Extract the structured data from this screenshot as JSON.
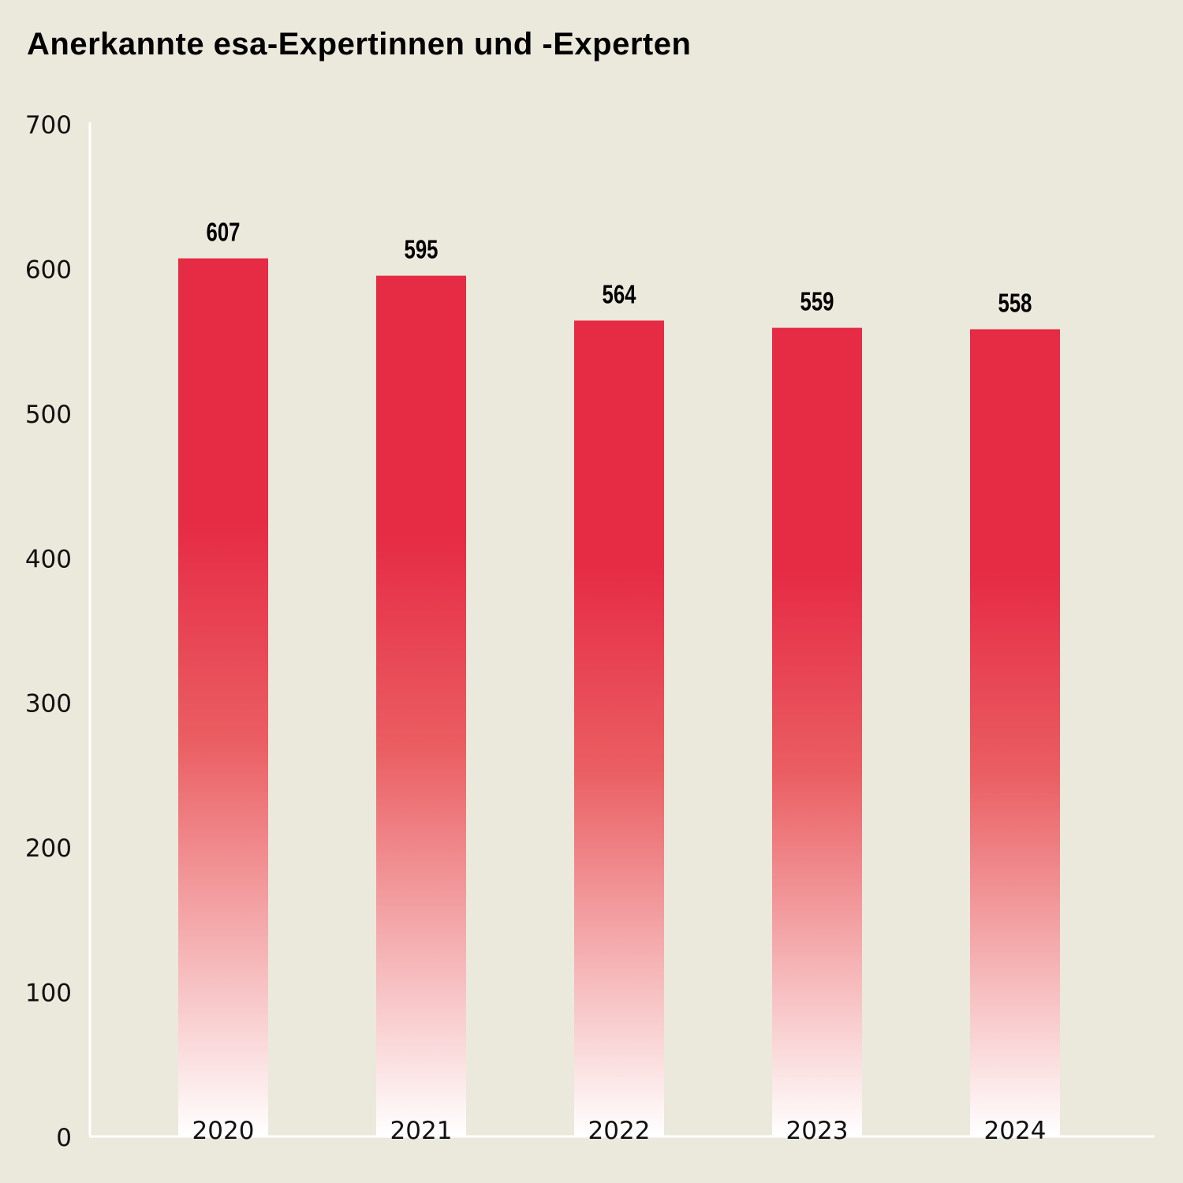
{
  "chart_data": {
    "type": "bar",
    "title": "Anerkannte esa-Expertinnen und -Experten",
    "categories": [
      "2020",
      "2021",
      "2022",
      "2023",
      "2024"
    ],
    "values": [
      607,
      595,
      564,
      559,
      558
    ],
    "ylim": [
      0,
      700
    ],
    "yticks": [
      0,
      100,
      200,
      300,
      400,
      500,
      600,
      700
    ],
    "xlabel": "",
    "ylabel": "",
    "grid": false,
    "data_labels": true,
    "colors": {
      "background": "#ebe8dc",
      "bar_top": "#e62b45",
      "bar_bottom": "#ffffff",
      "axis": "#ffffff"
    }
  }
}
